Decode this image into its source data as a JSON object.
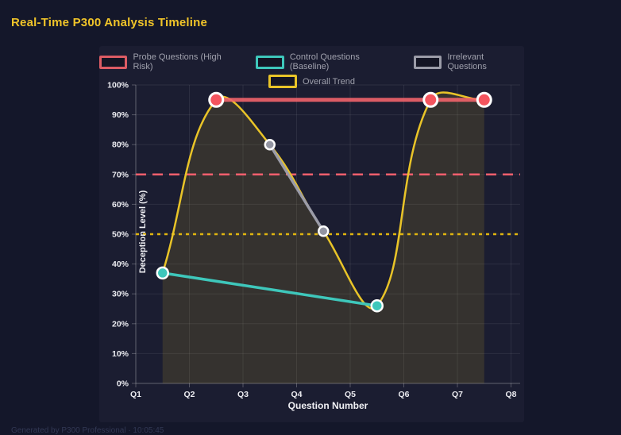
{
  "header": {
    "title": "Real-Time P300 Analysis Timeline"
  },
  "footer": {
    "text": "Generated by P300 Professional · 10:05:45"
  },
  "theme": {
    "page_bg": "#14172a",
    "figure_bg": "#1b1d31",
    "grid_color": "rgba(255,255,255,0.08)",
    "axis_color": "rgba(255,255,255,0.25)",
    "tick_text": "#ececf1",
    "title_color": "#f0c429",
    "legend_text": "#9fa0ac"
  },
  "chart_data": {
    "type": "line",
    "title": "Real-Time P300 Analysis Timeline",
    "xlabel": "Question Number",
    "ylabel": "Deception Level (%)",
    "x_ticks": [
      "Q1",
      "Q2",
      "Q3",
      "Q4",
      "Q5",
      "Q6",
      "Q7",
      "Q8"
    ],
    "x_values_of_ticks": [
      1,
      2,
      3,
      4,
      5,
      6,
      7,
      8
    ],
    "y_ticks": [
      "0%",
      "10%",
      "20%",
      "30%",
      "40%",
      "50%",
      "60%",
      "70%",
      "80%",
      "90%",
      "100%"
    ],
    "ylim": [
      0,
      100
    ],
    "y_tick_step": 10,
    "grid": true,
    "legend_position": "top",
    "series": [
      {
        "name": "Probe Questions (High Risk)",
        "kind": "segments",
        "color": "rgba(242,100,108,0.9)",
        "point_fill": "#f4545e",
        "point_radius": 8.5,
        "point_border": 3,
        "line_width": 5,
        "points": [
          [
            2.5,
            95
          ],
          [
            6.5,
            95
          ],
          [
            7.5,
            95
          ]
        ]
      },
      {
        "name": "Control Questions (Baseline)",
        "kind": "segments",
        "color": "#3ec7bb",
        "point_fill": "#3ec7bb",
        "point_radius": 7,
        "point_border": 2.5,
        "line_width": 3.5,
        "points": [
          [
            1.5,
            37
          ],
          [
            5.5,
            26
          ]
        ]
      },
      {
        "name": "Irrelevant Questions",
        "kind": "segments",
        "color": "#9b9ca8",
        "point_fill": "#9395a2",
        "point_radius": 6,
        "point_border": 2.5,
        "line_width": 3.5,
        "points": [
          [
            3.5,
            80
          ],
          [
            4.5,
            51
          ]
        ]
      },
      {
        "name": "Overall Trend",
        "kind": "spline",
        "color": "#e9c428",
        "fill": "rgba(233,196,40,0.13)",
        "point_radius": 0,
        "line_width": 2.5,
        "tension": 0.4,
        "points": [
          [
            1.5,
            37
          ],
          [
            2.5,
            95
          ],
          [
            3.5,
            80
          ],
          [
            4.5,
            51
          ],
          [
            5.5,
            26
          ],
          [
            6.5,
            95
          ],
          [
            7.5,
            95
          ]
        ]
      }
    ],
    "thresholds": [
      {
        "value": 70,
        "color": "#f25f6d",
        "dash": "13 8",
        "width": 2.5,
        "style": "dashed"
      },
      {
        "value": 50,
        "color": "#e0b50f",
        "dash": "4 5",
        "width": 2.5,
        "style": "dotted"
      }
    ]
  }
}
